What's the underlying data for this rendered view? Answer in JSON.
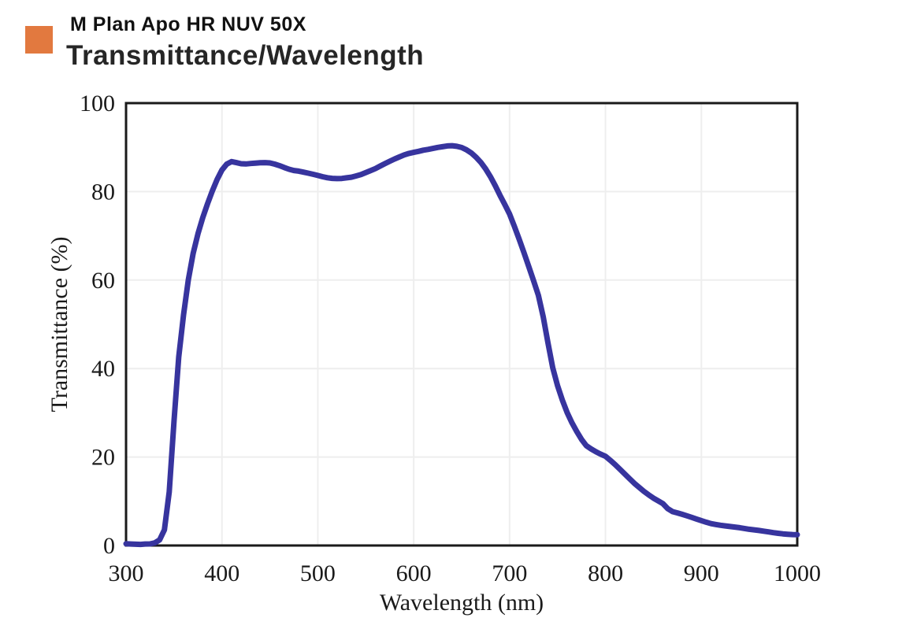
{
  "header": {
    "product": "M Plan Apo HR NUV 50X",
    "title": "Transmittance/Wavelength",
    "accent_color": "#E2793F"
  },
  "chart_data": {
    "type": "line",
    "title": "Transmittance/Wavelength",
    "xlabel": "Wavelength (nm)",
    "ylabel": "Transmittance (%)",
    "xlim": [
      300,
      1000
    ],
    "ylim": [
      0,
      100
    ],
    "xticks": [
      300,
      400,
      500,
      600,
      700,
      800,
      900,
      1000
    ],
    "yticks": [
      0,
      20,
      40,
      60,
      80,
      100
    ],
    "grid": true,
    "grid_color": "#eeeeee",
    "frame_color": "#1a1a1a",
    "line_color": "#37349E",
    "series": [
      {
        "name": "transmittance",
        "x": [
          300,
          305,
          310,
          315,
          320,
          325,
          330,
          335,
          340,
          345,
          350,
          355,
          360,
          365,
          370,
          375,
          380,
          385,
          390,
          395,
          400,
          405,
          410,
          415,
          420,
          425,
          430,
          435,
          440,
          445,
          450,
          455,
          460,
          465,
          470,
          475,
          480,
          485,
          490,
          495,
          500,
          505,
          510,
          515,
          520,
          525,
          530,
          535,
          540,
          545,
          550,
          555,
          560,
          565,
          570,
          575,
          580,
          585,
          590,
          595,
          600,
          605,
          610,
          615,
          620,
          625,
          630,
          635,
          640,
          645,
          650,
          655,
          660,
          665,
          670,
          675,
          680,
          685,
          690,
          695,
          700,
          705,
          710,
          715,
          720,
          725,
          730,
          735,
          740,
          745,
          750,
          755,
          760,
          765,
          770,
          775,
          780,
          785,
          790,
          795,
          800,
          805,
          810,
          815,
          820,
          825,
          830,
          835,
          840,
          845,
          850,
          855,
          860,
          865,
          870,
          875,
          880,
          885,
          890,
          895,
          900,
          905,
          910,
          915,
          920,
          925,
          930,
          935,
          940,
          945,
          950,
          955,
          960,
          965,
          970,
          975,
          980,
          985,
          990,
          995,
          1000
        ],
        "y": [
          0.4,
          0.4,
          0.4,
          0.4,
          0.5,
          0.5,
          0.7,
          1.3,
          3.5,
          12,
          28,
          42.5,
          52,
          60,
          66,
          70.5,
          74.2,
          77.4,
          80.3,
          82.9,
          85.0,
          86.3,
          86.8,
          86.5,
          86.2,
          86.1,
          86.2,
          86.3,
          86.4,
          86.5,
          86.5,
          86.3,
          86.0,
          85.6,
          85.2,
          84.9,
          84.7,
          84.4,
          84.1,
          83.8,
          83.5,
          83.2,
          83.0,
          82.9,
          82.9,
          83.0,
          83.2,
          83.4,
          83.7,
          84.0,
          84.4,
          84.8,
          85.2,
          85.7,
          86.2,
          86.7,
          87.2,
          87.7,
          88.2,
          88.6,
          88.9,
          89.2,
          89.5,
          89.7,
          89.9,
          90.1,
          90.2,
          90.3,
          90.3,
          90.1,
          89.8,
          89.3,
          88.6,
          87.7,
          86.6,
          85.2,
          83.5,
          81.5,
          79.3,
          77.2,
          75.0,
          72.2,
          69.2,
          66.1,
          62.9,
          59.7,
          56.4,
          51.6,
          45.8,
          40.2,
          36.2,
          33.0,
          30.2,
          27.9,
          25.9,
          24.1,
          22.6,
          21.8,
          21.1,
          20.5,
          20.0,
          19.1,
          18.2,
          17.2,
          16.2,
          15.2,
          14.2,
          13.3,
          12.4,
          11.6,
          10.8,
          10.1,
          9.4,
          8.2,
          7.5,
          7.2,
          6.9,
          6.6,
          6.3,
          6.0,
          5.7,
          5.4,
          5.1,
          4.9,
          4.7,
          4.5,
          4.3,
          4.1,
          3.9,
          3.7,
          3.5,
          3.4,
          3.3,
          3.2,
          3.1,
          3.0,
          2.9,
          2.8,
          2.7,
          2.6,
          2.5
        ]
      }
    ]
  }
}
